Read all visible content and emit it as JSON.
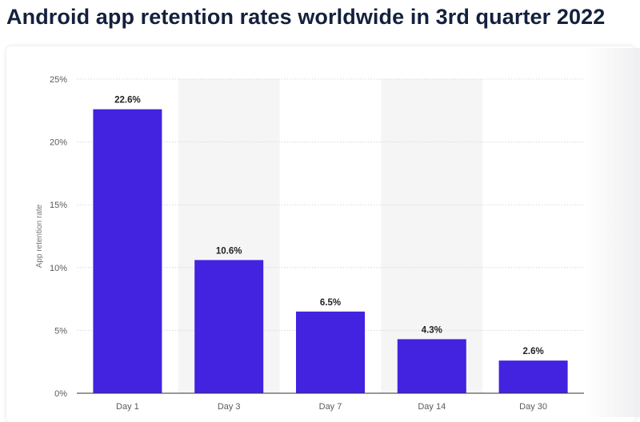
{
  "title": "Android app retention rates worldwide in 3rd quarter 2022",
  "chart_data": {
    "type": "bar",
    "title": "Android app retention rates worldwide in 3rd quarter 2022",
    "xlabel": "",
    "ylabel": "App retention rate",
    "categories": [
      "Day 1",
      "Day 3",
      "Day 7",
      "Day 14",
      "Day 30"
    ],
    "values": [
      22.6,
      10.6,
      6.5,
      4.3,
      2.6
    ],
    "data_labels": [
      "22.6%",
      "10.6%",
      "6.5%",
      "4.3%",
      "2.6%"
    ],
    "yticks": [
      0,
      5,
      10,
      15,
      20,
      25
    ],
    "ytick_labels": [
      "0%",
      "5%",
      "10%",
      "15%",
      "20%",
      "25%"
    ],
    "ylim": [
      0,
      25
    ],
    "grid": true,
    "colors": {
      "bar": "#4322e0",
      "band": "#f5f5f6",
      "grid": "#d8d8d8"
    }
  }
}
